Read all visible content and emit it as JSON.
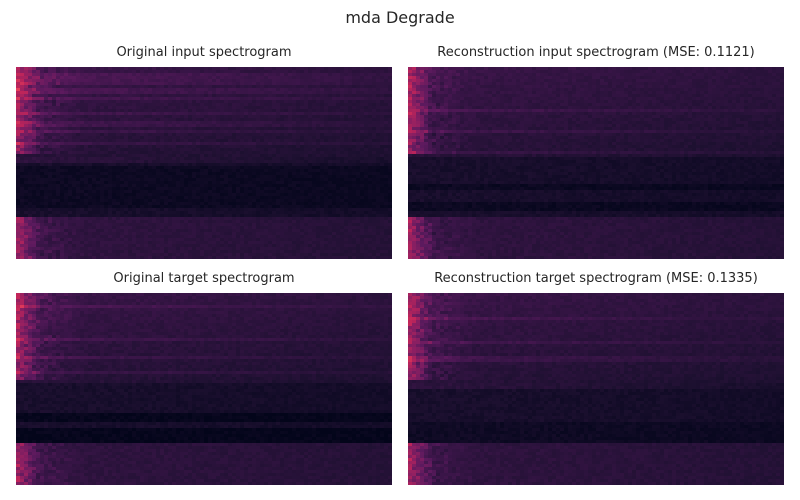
{
  "chart_data": {
    "title": "mda Degrade",
    "panels": [
      {
        "type": "heatmap",
        "title": "Original input spectrogram",
        "dark_band": "wide"
      },
      {
        "type": "heatmap",
        "title": "Reconstruction input spectrogram (MSE: 0.1121)",
        "dark_band": "double"
      },
      {
        "type": "heatmap",
        "title": "Original target spectrogram",
        "dark_band": "sharp"
      },
      {
        "type": "heatmap",
        "title": "Reconstruction target spectrogram (MSE: 0.1335)",
        "dark_band": "soft"
      }
    ],
    "axes": "off",
    "grid": false,
    "colormap": [
      "#03051a",
      "#1d1030",
      "#3a1548",
      "#5c1a5e",
      "#8a1f62",
      "#c0255a",
      "#e8405a"
    ]
  }
}
